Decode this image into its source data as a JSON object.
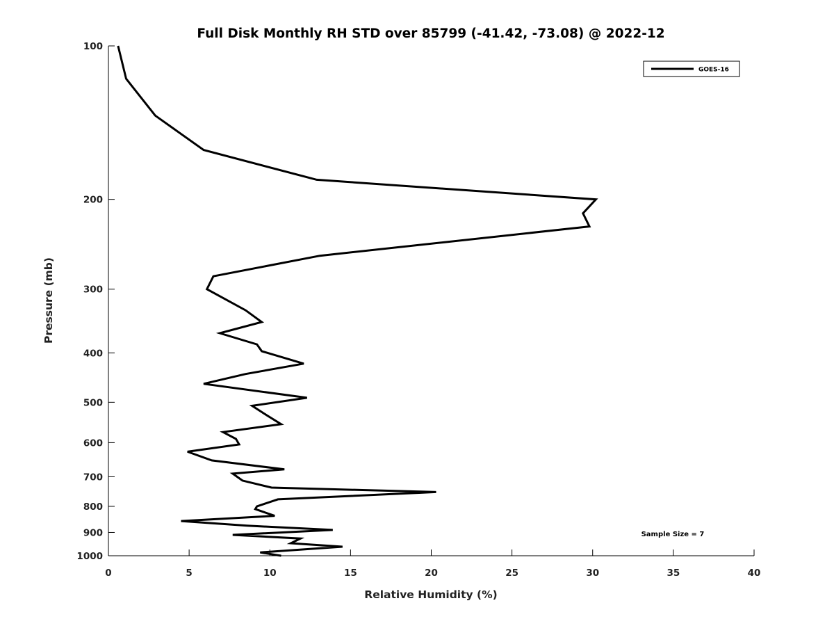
{
  "chart_data": {
    "type": "line",
    "title": "Full Disk Monthly RH STD over 85799 (-41.42, -73.08) @ 2022-12",
    "xlabel": "Relative Humidity (%)",
    "ylabel": "Pressure (mb)",
    "xlim": [
      0,
      40
    ],
    "ylim": [
      100,
      1000
    ],
    "yscale": "log",
    "y_reversed": true,
    "x_ticks": [
      "0",
      "5",
      "10",
      "15",
      "20",
      "25",
      "30",
      "35",
      "40"
    ],
    "y_ticks": [
      "100",
      "200",
      "300",
      "400",
      "500",
      "600",
      "700",
      "800",
      "900",
      "1000"
    ],
    "grid": false,
    "legend_position": "top-right",
    "annotation": "Sample Size = 7",
    "series": [
      {
        "name": "GOES-16",
        "color": "#000000",
        "x": [
          0.6,
          1.1,
          2.9,
          5.9,
          12.9,
          30.2,
          29.4,
          29.8,
          13.1,
          6.5,
          6.1,
          8.5,
          9.5,
          6.9,
          9.2,
          9.5,
          12.1,
          8.5,
          5.9,
          12.3,
          8.9,
          9.8,
          10.7,
          7.1,
          7.9,
          8.1,
          4.9,
          6.4,
          10.9,
          7.7,
          8.3,
          10.1,
          20.3,
          10.5,
          9.2,
          9.1,
          10.3,
          4.5,
          8.6,
          13.9,
          7.7,
          11.9,
          11.3,
          14.5,
          9.4,
          10.7
        ],
        "y": [
          100,
          116,
          137,
          160,
          183,
          200,
          213,
          226,
          258,
          283,
          300,
          330,
          348,
          366,
          385,
          397,
          420,
          440,
          460,
          490,
          508,
          530,
          552,
          572,
          590,
          605,
          625,
          650,
          677,
          690,
          712,
          735,
          750,
          775,
          800,
          810,
          835,
          855,
          873,
          890,
          910,
          925,
          945,
          960,
          985,
          1000
        ]
      }
    ]
  }
}
